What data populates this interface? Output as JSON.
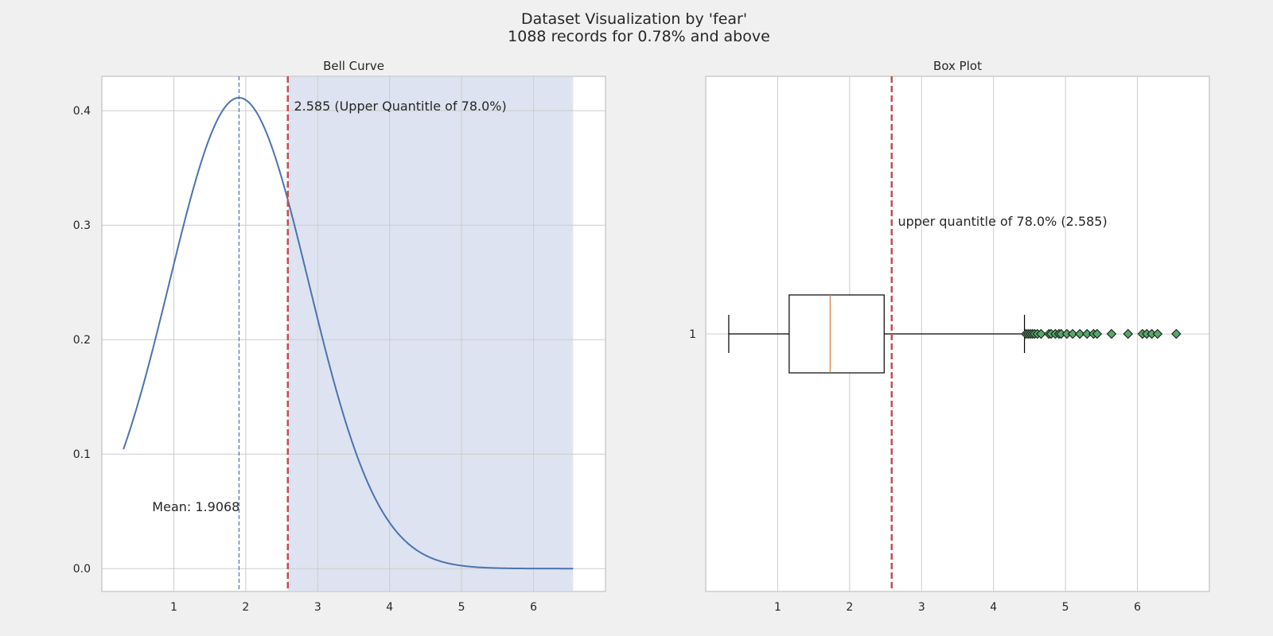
{
  "figure": {
    "title_line1": "Dataset Visualization by 'fear'",
    "title_line2": "1088 records for 0.78% and above"
  },
  "chart_data": [
    {
      "type": "line",
      "title": "Bell Curve",
      "xlabel": "",
      "ylabel": "",
      "xlim": [
        0.0,
        7.0
      ],
      "ylim": [
        -0.02,
        0.43
      ],
      "xticks": [
        1,
        2,
        3,
        4,
        5,
        6
      ],
      "yticks": [
        0.0,
        0.1,
        0.2,
        0.3,
        0.4
      ],
      "ytick_labels": [
        "0.0",
        "0.1",
        "0.2",
        "0.3",
        "0.4"
      ],
      "grid": true,
      "curve": {
        "distribution": "normal",
        "mean": 1.9068,
        "std": 0.97,
        "x_start": 0.3,
        "x_end": 6.55,
        "color": "#4c72b0"
      },
      "mean_line": {
        "x": 1.9068,
        "color": "#4c72b0",
        "style": "dashed"
      },
      "threshold_line": {
        "x": 2.585,
        "color": "#c44e52",
        "style": "dashed"
      },
      "shaded_region": {
        "x_from": 2.585,
        "x_to": 6.55,
        "color": "#dde3f0"
      },
      "annotations": [
        {
          "text": "2.585 (Upper Quantitle of 78.0%)",
          "x": 2.67,
          "y": 0.4
        },
        {
          "text": "Mean: 1.9068",
          "x": 0.7,
          "y": 0.05
        }
      ]
    },
    {
      "type": "box",
      "title": "Box Plot",
      "xlabel": "",
      "ylabel": "",
      "xlim": [
        0.0,
        7.0
      ],
      "xticks": [
        1,
        2,
        3,
        4,
        5,
        6
      ],
      "ytick_labels": [
        "1"
      ],
      "grid": true,
      "box": {
        "whisker_low": 0.32,
        "q1": 1.16,
        "median": 1.73,
        "q3": 2.48,
        "whisker_high": 4.43,
        "box_color": "#000000",
        "median_color": "#dd8452"
      },
      "outliers": [
        4.45,
        4.48,
        4.51,
        4.54,
        4.57,
        4.61,
        4.66,
        4.77,
        4.8,
        4.86,
        4.91,
        4.94,
        5.02,
        5.1,
        5.2,
        5.3,
        5.39,
        5.44,
        5.64,
        5.87,
        6.07,
        6.13,
        6.2,
        6.28,
        6.54
      ],
      "outlier_color": "#55a868",
      "threshold_line": {
        "x": 2.585,
        "color": "#c44e52",
        "style": "dashed"
      },
      "annotations": [
        {
          "text": "upper quantitle of 78.0% (2.585)",
          "x": 2.67,
          "y_frac": 0.71
        }
      ]
    }
  ]
}
